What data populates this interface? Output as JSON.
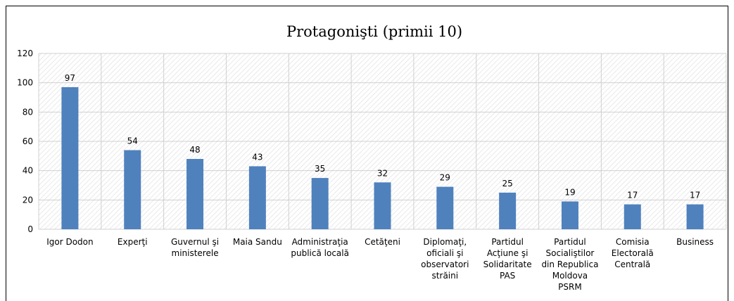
{
  "chart_data": {
    "type": "bar",
    "title": "Protagonişti (primii 10)",
    "categories": [
      "Igor Dodon",
      "Experţi",
      "Guvernul şi\nministerele",
      "Maia Sandu",
      "Administraţia\npublică locală",
      "Cetăţeni",
      "Diplomaţi,\noficiali şi\nobservatori\nstrăini",
      "Partidul\nAcţiune şi\nSolidaritate\nPAS",
      "Partidul\nSocialiştilor\ndin Republica\nMoldova\nPSRM",
      "Comisia\nElectorală\nCentrală",
      "Business"
    ],
    "values": [
      97,
      54,
      48,
      43,
      35,
      32,
      29,
      25,
      19,
      17,
      17
    ],
    "color": "#4f81bd",
    "ylim": [
      0,
      120
    ],
    "yticks": [
      0,
      20,
      40,
      60,
      80,
      100,
      120
    ],
    "grid": true
  }
}
